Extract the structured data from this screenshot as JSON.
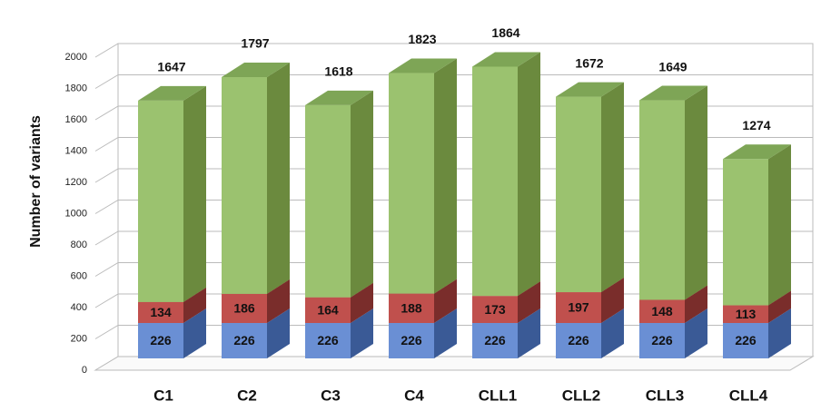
{
  "chart_data": {
    "type": "stacked_bar_3d",
    "y_label": "Number of variants",
    "categories": [
      "C1",
      "C2",
      "C3",
      "C4",
      "CLL1",
      "CLL2",
      "CLL3",
      "CLL4"
    ],
    "series": [
      {
        "color": "#6a8fd4",
        "side": "#3a5a96",
        "top": "#8aaae0",
        "values": [
          226,
          226,
          226,
          226,
          226,
          226,
          226,
          226
        ]
      },
      {
        "color": "#c0504d",
        "side": "#7a2d2b",
        "top": "#a34340",
        "values": [
          134,
          186,
          164,
          188,
          173,
          197,
          148,
          113
        ]
      },
      {
        "color": "#9bc26f",
        "side": "#6b8a3e",
        "top": "#7ea556",
        "values": [
          1287,
          1385,
          1228,
          1409,
          1465,
          1249,
          1275,
          935
        ]
      }
    ],
    "labeled_series": [
      0,
      1
    ],
    "totals": [
      1647,
      1797,
      1618,
      1823,
      1864,
      1672,
      1649,
      1274
    ],
    "ylim": [
      0,
      2000
    ],
    "yticks": [
      0,
      200,
      400,
      600,
      800,
      1000,
      1200,
      1400,
      1600,
      1800,
      2000
    ],
    "grid": true
  }
}
